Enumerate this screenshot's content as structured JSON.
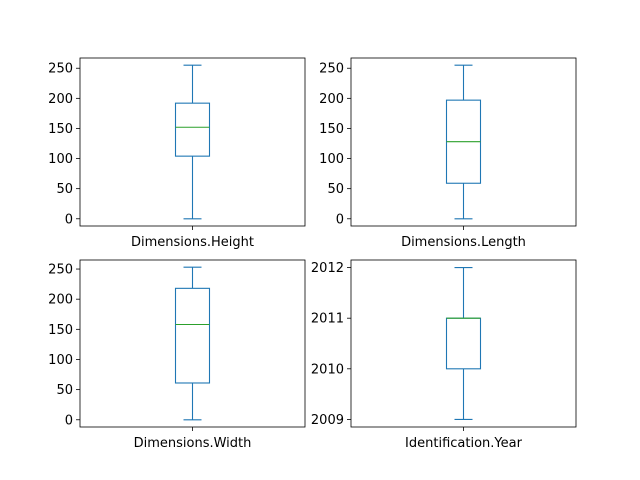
{
  "chart_data": [
    {
      "type": "box",
      "category": "Dimensions.Height",
      "stats": {
        "min": 0,
        "q1": 104,
        "median": 152,
        "q3": 192,
        "max": 255
      },
      "ylim": [
        -12,
        267
      ],
      "yticks": [
        0,
        50,
        100,
        150,
        200,
        250
      ],
      "ytick_labels": [
        "0",
        "50",
        "100",
        "150",
        "200",
        "250"
      ]
    },
    {
      "type": "box",
      "category": "Dimensions.Length",
      "stats": {
        "min": 0,
        "q1": 59,
        "median": 128,
        "q3": 197,
        "max": 255
      },
      "ylim": [
        -12,
        267
      ],
      "yticks": [
        0,
        50,
        100,
        150,
        200,
        250
      ],
      "ytick_labels": [
        "0",
        "50",
        "100",
        "150",
        "200",
        "250"
      ]
    },
    {
      "type": "box",
      "category": "Dimensions.Width",
      "stats": {
        "min": 0,
        "q1": 61,
        "median": 158,
        "q3": 218,
        "max": 253
      },
      "ylim": [
        -12,
        265
      ],
      "yticks": [
        0,
        50,
        100,
        150,
        200,
        250
      ],
      "ytick_labels": [
        "0",
        "50",
        "100",
        "150",
        "200",
        "250"
      ]
    },
    {
      "type": "box",
      "category": "Identification.Year",
      "stats": {
        "min": 2009,
        "q1": 2010,
        "median": 2011,
        "q3": 2011,
        "max": 2012
      },
      "ylim": [
        2008.85,
        2012.15
      ],
      "yticks": [
        2009,
        2010,
        2011,
        2012
      ],
      "ytick_labels": [
        "2009",
        "2010",
        "2011",
        "2012"
      ]
    }
  ],
  "colors": {
    "box": "#1f77b4",
    "median": "#2ca02c",
    "axes": "#000000"
  }
}
